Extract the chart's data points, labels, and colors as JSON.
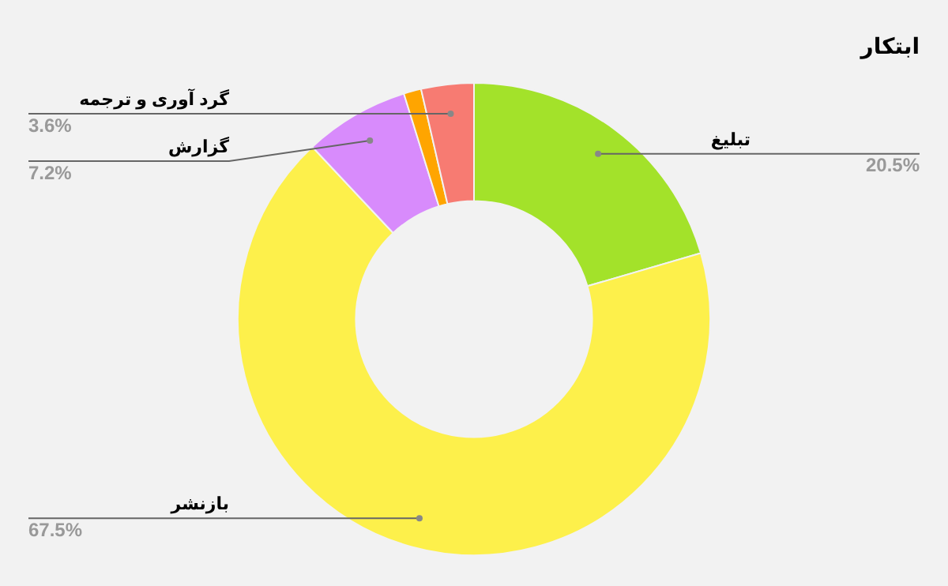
{
  "chart_data": {
    "type": "donut",
    "title": "ابتکار",
    "categories": [
      "تبلیغ",
      "بازنشر",
      "گزارش",
      null,
      "گرد آوری و ترجمه"
    ],
    "values": [
      20.5,
      67.5,
      7.2,
      1.2,
      3.6
    ],
    "colors": [
      "#a3e22a",
      "#fdf04b",
      "#d88bfc",
      "#ffa500",
      "#f77b72"
    ],
    "value_labels": [
      "20.5%",
      "67.5%",
      "7.2%",
      null,
      "3.6%"
    ],
    "legend": false
  }
}
